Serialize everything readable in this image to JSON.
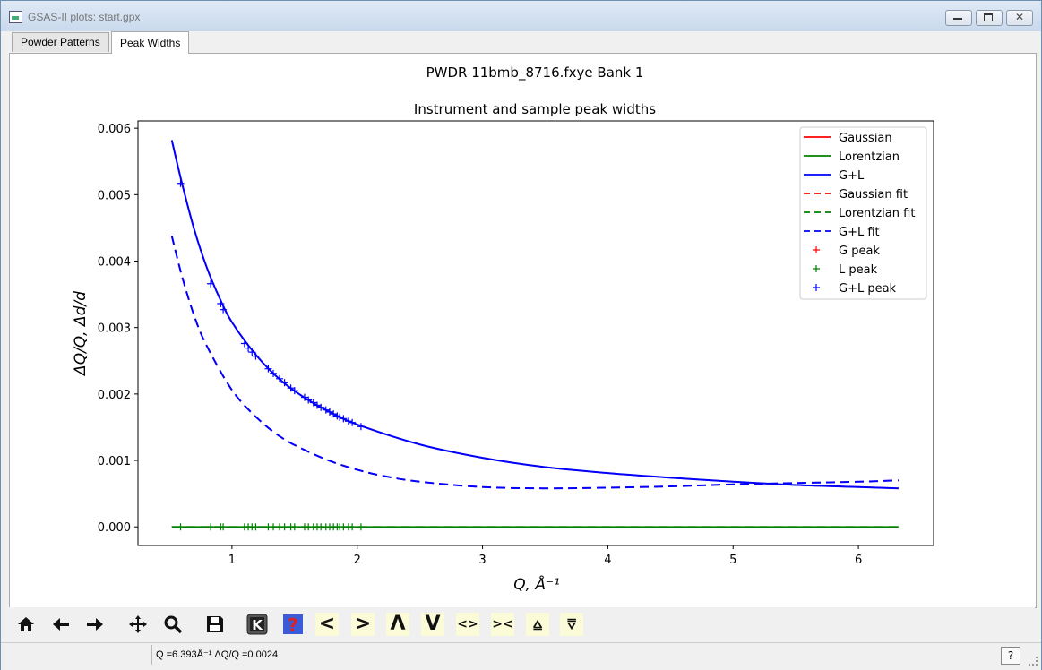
{
  "window": {
    "title": "GSAS-II plots: start.gpx",
    "minimize_icon": "minimize-icon",
    "maximize_icon": "maximize-icon",
    "close_icon": "close-icon",
    "close_glyph": "✕"
  },
  "tabs": [
    {
      "label": "Powder Patterns",
      "active": false
    },
    {
      "label": "Peak Widths",
      "active": true
    }
  ],
  "toolbar": {
    "icons": [
      "home-icon",
      "back-arrow-icon",
      "forward-arrow-icon",
      "pan-icon",
      "zoom-icon",
      "save-icon",
      "k-key-icon",
      "help-icon"
    ],
    "help_glyph": "?",
    "k_glyph": "K",
    "nav_buttons": [
      "<",
      ">",
      "Λ",
      "V",
      "<>",
      "><",
      "⩠",
      "⩢"
    ]
  },
  "status": {
    "text": "Q =6.393Å⁻¹ ΔQ/Q =0.0024",
    "help_label": "?"
  },
  "chart_data": {
    "type": "line",
    "title": "PWDR 11bmb_8716.fxye Bank 1",
    "subtitle": "Instrument and sample peak widths",
    "xlabel": "Q, Å⁻¹",
    "ylabel": "ΔQ/Q, Δd/d",
    "xlim": [
      0.25,
      6.6
    ],
    "ylim": [
      -0.00028,
      0.00611
    ],
    "xticks": [
      1,
      2,
      3,
      4,
      5,
      6
    ],
    "yticks": [
      0.0,
      0.001,
      0.002,
      0.003,
      0.004,
      0.005,
      0.006
    ],
    "ytick_labels": [
      "0.000",
      "0.001",
      "0.002",
      "0.003",
      "0.004",
      "0.005",
      "0.006"
    ],
    "legend_position": "top-right",
    "legend": [
      {
        "label": "Gaussian",
        "style": "solid",
        "color": "#ff0000"
      },
      {
        "label": "Lorentzian",
        "style": "solid",
        "color": "#008000"
      },
      {
        "label": "G+L",
        "style": "solid",
        "color": "#0000ff"
      },
      {
        "label": "Gaussian fit",
        "style": "dashed",
        "color": "#ff0000"
      },
      {
        "label": "Lorentzian fit",
        "style": "dashed",
        "color": "#008000"
      },
      {
        "label": "G+L fit",
        "style": "dashed",
        "color": "#0000ff"
      },
      {
        "label": "G peak",
        "style": "marker",
        "color": "#ff0000"
      },
      {
        "label": "L peak",
        "style": "marker",
        "color": "#008000"
      },
      {
        "label": "G+L peak",
        "style": "marker",
        "color": "#0000ff"
      }
    ],
    "series": [
      {
        "name": "Gaussian",
        "color": "#ff0000",
        "style": "solid",
        "x": [
          0.52,
          0.6,
          0.7,
          0.8,
          0.9,
          1.0,
          1.2,
          1.4,
          1.6,
          1.8,
          2.0,
          2.5,
          3.0,
          3.5,
          4.0,
          4.5,
          5.0,
          5.5,
          6.0,
          6.32
        ],
        "y": [
          0.00582,
          0.00518,
          0.00447,
          0.0039,
          0.00345,
          0.00308,
          0.00257,
          0.00219,
          0.00192,
          0.00171,
          0.00154,
          0.00124,
          0.00104,
          0.0009,
          0.00081,
          0.00074,
          0.00068,
          0.00063,
          0.0006,
          0.00058
        ]
      },
      {
        "name": "Lorentzian",
        "color": "#008000",
        "style": "solid",
        "x": [
          0.52,
          6.32
        ],
        "y": [
          0.0,
          0.0
        ]
      },
      {
        "name": "G+L",
        "color": "#0000ff",
        "style": "solid",
        "x": [
          0.52,
          0.6,
          0.7,
          0.8,
          0.9,
          1.0,
          1.2,
          1.4,
          1.6,
          1.8,
          2.0,
          2.5,
          3.0,
          3.5,
          4.0,
          4.5,
          5.0,
          5.5,
          6.0,
          6.32
        ],
        "y": [
          0.00582,
          0.00518,
          0.00447,
          0.0039,
          0.00345,
          0.00308,
          0.00257,
          0.00219,
          0.00192,
          0.00171,
          0.00154,
          0.00124,
          0.00104,
          0.0009,
          0.00081,
          0.00074,
          0.00068,
          0.00063,
          0.0006,
          0.00058
        ]
      },
      {
        "name": "Gaussian fit",
        "color": "#ff0000",
        "style": "dashed",
        "x": [
          0.52,
          0.6,
          0.7,
          0.8,
          1.0,
          1.2,
          1.4,
          1.6,
          1.8,
          2.0,
          2.2,
          2.5,
          3.0,
          3.5,
          4.0,
          4.5,
          5.0,
          5.5,
          6.0,
          6.32
        ],
        "y": [
          0.00438,
          0.00378,
          0.00317,
          0.00272,
          0.00206,
          0.00164,
          0.00134,
          0.00114,
          0.00098,
          0.00086,
          0.00077,
          0.00068,
          0.0006,
          0.00058,
          0.00059,
          0.00061,
          0.00064,
          0.00066,
          0.00068,
          0.0007
        ]
      },
      {
        "name": "Lorentzian fit",
        "color": "#008000",
        "style": "dashed",
        "x": [
          0.52,
          6.32
        ],
        "y": [
          0.0,
          0.0
        ]
      },
      {
        "name": "G+L fit",
        "color": "#0000ff",
        "style": "dashed",
        "x": [
          0.52,
          0.6,
          0.7,
          0.8,
          1.0,
          1.2,
          1.4,
          1.6,
          1.8,
          2.0,
          2.2,
          2.5,
          3.0,
          3.5,
          4.0,
          4.5,
          5.0,
          5.5,
          6.0,
          6.32
        ],
        "y": [
          0.00438,
          0.00378,
          0.00317,
          0.00272,
          0.00206,
          0.00164,
          0.00134,
          0.00114,
          0.00098,
          0.00086,
          0.00077,
          0.00068,
          0.0006,
          0.00058,
          0.00059,
          0.00061,
          0.00064,
          0.00066,
          0.00068,
          0.0007
        ]
      },
      {
        "name": "G+L peak",
        "color": "#0000ff",
        "style": "marker",
        "x": [
          0.59,
          0.83,
          0.91,
          0.93,
          1.1,
          1.13,
          1.16,
          1.19,
          1.29,
          1.33,
          1.38,
          1.42,
          1.47,
          1.5,
          1.58,
          1.61,
          1.65,
          1.68,
          1.71,
          1.75,
          1.78,
          1.81,
          1.84,
          1.86,
          1.89,
          1.93,
          1.96,
          2.03
        ],
        "y": [
          0.00517,
          0.00366,
          0.00336,
          0.00327,
          0.00276,
          0.00269,
          0.00263,
          0.00257,
          0.00238,
          0.00231,
          0.00223,
          0.00217,
          0.00209,
          0.00205,
          0.00195,
          0.00191,
          0.00187,
          0.00183,
          0.0018,
          0.00176,
          0.00173,
          0.0017,
          0.00167,
          0.00165,
          0.00163,
          0.00159,
          0.00157,
          0.00151
        ]
      },
      {
        "name": "L peak",
        "color": "#008000",
        "style": "marker",
        "x": [
          0.59,
          0.83,
          0.91,
          0.93,
          1.1,
          1.13,
          1.16,
          1.19,
          1.29,
          1.33,
          1.38,
          1.42,
          1.47,
          1.5,
          1.58,
          1.61,
          1.65,
          1.68,
          1.71,
          1.75,
          1.78,
          1.81,
          1.84,
          1.86,
          1.89,
          1.93,
          1.96,
          2.03
        ],
        "y": [
          0,
          0,
          0,
          0,
          0,
          0,
          0,
          0,
          0,
          0,
          0,
          0,
          0,
          0,
          0,
          0,
          0,
          0,
          0,
          0,
          0,
          0,
          0,
          0,
          0,
          0,
          0,
          0
        ]
      }
    ]
  }
}
